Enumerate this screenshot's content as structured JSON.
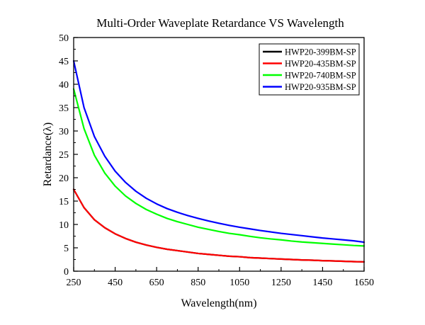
{
  "chart_data": {
    "type": "line",
    "title": "Multi-Order Waveplate Retardance VS Wavelength",
    "xlabel": "Wavelength(nm)",
    "ylabel": "Retardance(λ)",
    "xlim": [
      250,
      1650
    ],
    "ylim": [
      0,
      50
    ],
    "xticks": [
      250,
      450,
      650,
      850,
      1050,
      1250,
      1450,
      1650
    ],
    "yticks": [
      0,
      5,
      10,
      15,
      20,
      25,
      30,
      35,
      40,
      45,
      50
    ],
    "grid": false,
    "legend_position": "top-right",
    "series": [
      {
        "name": "HWP20-399BM-SP",
        "color": "#000000",
        "x": [
          250,
          300,
          350,
          400,
          450,
          500,
          550,
          600,
          650,
          700,
          750,
          800,
          850,
          900,
          950,
          1000,
          1050,
          1100,
          1150,
          1200,
          1250,
          1300,
          1350,
          1400,
          1450,
          1500,
          1550,
          1600,
          1650
        ],
        "y": [
          17.5,
          13.6,
          11.0,
          9.3,
          8.0,
          7.0,
          6.2,
          5.6,
          5.1,
          4.7,
          4.4,
          4.1,
          3.8,
          3.6,
          3.4,
          3.2,
          3.1,
          2.9,
          2.8,
          2.7,
          2.6,
          2.5,
          2.4,
          2.35,
          2.25,
          2.2,
          2.12,
          2.05,
          2.0
        ]
      },
      {
        "name": "HWP20-435BM-SP",
        "color": "#ff0000",
        "x": [
          250,
          300,
          350,
          400,
          450,
          500,
          550,
          600,
          650,
          700,
          750,
          800,
          850,
          900,
          950,
          1000,
          1050,
          1100,
          1150,
          1200,
          1250,
          1300,
          1350,
          1400,
          1450,
          1500,
          1550,
          1600,
          1650
        ],
        "y": [
          17.5,
          13.6,
          11.0,
          9.3,
          8.0,
          7.0,
          6.2,
          5.6,
          5.1,
          4.7,
          4.4,
          4.1,
          3.8,
          3.6,
          3.4,
          3.2,
          3.1,
          2.9,
          2.8,
          2.7,
          2.6,
          2.5,
          2.4,
          2.35,
          2.25,
          2.2,
          2.12,
          2.05,
          2.0
        ]
      },
      {
        "name": "HWP20-740BM-SP",
        "color": "#00ff00",
        "x": [
          250,
          300,
          350,
          400,
          450,
          500,
          550,
          600,
          650,
          700,
          750,
          800,
          850,
          900,
          950,
          1000,
          1050,
          1100,
          1150,
          1200,
          1250,
          1300,
          1350,
          1400,
          1450,
          1500,
          1550,
          1600,
          1650
        ],
        "y": [
          39.0,
          30.5,
          24.8,
          21.0,
          18.2,
          16.1,
          14.5,
          13.2,
          12.2,
          11.3,
          10.6,
          10.0,
          9.4,
          8.95,
          8.5,
          8.1,
          7.8,
          7.45,
          7.15,
          6.9,
          6.7,
          6.45,
          6.25,
          6.1,
          5.95,
          5.8,
          5.65,
          5.5,
          5.4
        ]
      },
      {
        "name": "HWP20-935BM-SP",
        "color": "#0000ff",
        "x": [
          250,
          300,
          350,
          400,
          450,
          500,
          550,
          600,
          650,
          700,
          750,
          800,
          850,
          900,
          950,
          1000,
          1050,
          1100,
          1150,
          1200,
          1250,
          1300,
          1350,
          1400,
          1450,
          1500,
          1550,
          1600,
          1650
        ],
        "y": [
          45.0,
          35.0,
          28.8,
          24.6,
          21.4,
          19.0,
          17.1,
          15.6,
          14.4,
          13.4,
          12.6,
          11.9,
          11.3,
          10.75,
          10.25,
          9.8,
          9.4,
          9.05,
          8.7,
          8.4,
          8.1,
          7.85,
          7.6,
          7.35,
          7.1,
          6.9,
          6.7,
          6.5,
          6.2
        ]
      }
    ]
  }
}
